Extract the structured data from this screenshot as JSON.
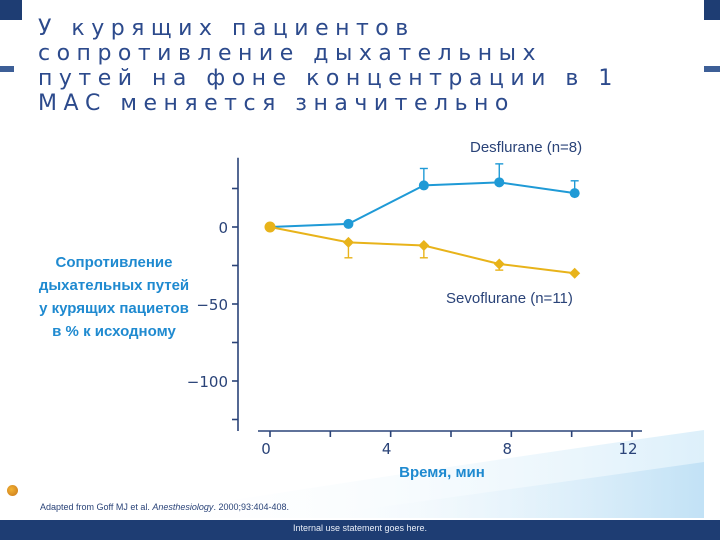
{
  "title_lines": [
    "У курящих пациентов",
    "сопротивление дыхательных",
    "путей на фоне концентрации в 1",
    "МАС меняется значительно"
  ],
  "chart_data": {
    "type": "line",
    "xlabel": "Время, мин",
    "ylabel_lines": [
      "Сопротивление",
      "дыхательных путей",
      "у курящих пациетов",
      "в % к исходному"
    ],
    "x_ticks": [
      0,
      4,
      8,
      12
    ],
    "y_ticks": [
      0,
      -50,
      -100
    ],
    "y_tick_labels": [
      "0",
      "−50",
      "−100"
    ],
    "xlim": [
      0,
      12
    ],
    "ylim": [
      -130,
      45
    ],
    "grid": false,
    "series": [
      {
        "name": "Desflurane (n=8)",
        "color": "#1f9ad6",
        "marker": "circle",
        "x": [
          0,
          2.6,
          5.1,
          7.6,
          10.1
        ],
        "y": [
          0,
          2,
          27,
          29,
          22
        ],
        "err": [
          0,
          0,
          11,
          12,
          8
        ]
      },
      {
        "name": "Sevoflurane (n=11)",
        "color": "#e8b31a",
        "marker": "diamond",
        "x": [
          0,
          2.6,
          5.1,
          7.6,
          10.1
        ],
        "y": [
          0,
          -10,
          -12,
          -24,
          -30
        ],
        "err": [
          0,
          10,
          8,
          4,
          0
        ]
      }
    ]
  },
  "source": {
    "prefix": "Adapted from Goff MJ et al. ",
    "journal": "Anesthesiology",
    "suffix": ". 2000;93:404-408."
  },
  "footer_text": "Internal use statement goes here."
}
